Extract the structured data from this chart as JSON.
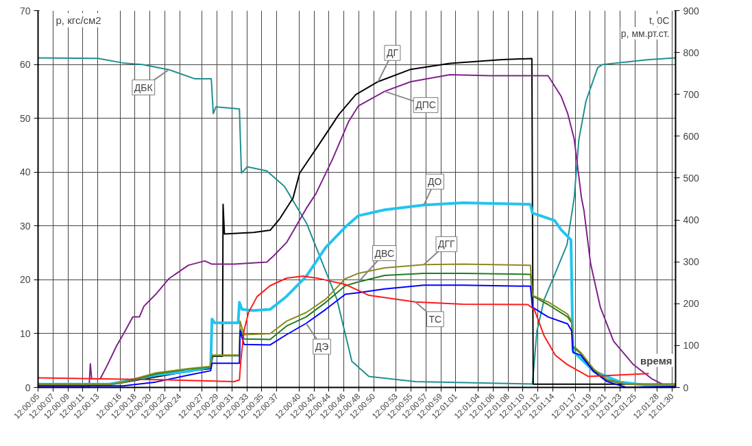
{
  "chart_data": {
    "type": "line",
    "ylabel": "p, кгс/см2",
    "y2label": "t, 0C\np, мм.рт.ст.",
    "xlabel": "время",
    "xlim": [
      12.001389,
      12.025125
    ],
    "xticks": [
      {
        "value": 12.001389,
        "label": "12:00:05"
      },
      {
        "value": 12.001944,
        "label": "12:00:07"
      },
      {
        "value": 12.0025,
        "label": "12:00:09"
      },
      {
        "value": 12.003056,
        "label": "12:00:11"
      },
      {
        "value": 12.003611,
        "label": "12:00:13"
      },
      {
        "value": 12.004444,
        "label": "12:00:16"
      },
      {
        "value": 12.005,
        "label": "12:00:18"
      },
      {
        "value": 12.005556,
        "label": "12:00:20"
      },
      {
        "value": 12.006111,
        "label": "12:00:22"
      },
      {
        "value": 12.006667,
        "label": "12:00:24"
      },
      {
        "value": 12.0075,
        "label": "12:00:27"
      },
      {
        "value": 12.008056,
        "label": "12:00:29"
      },
      {
        "value": 12.008611,
        "label": "12:00:31"
      },
      {
        "value": 12.009167,
        "label": "12:00:33"
      },
      {
        "value": 12.009722,
        "label": "12:00:35"
      },
      {
        "value": 12.010278,
        "label": "12:00:37"
      },
      {
        "value": 12.011111,
        "label": "12:00:40"
      },
      {
        "value": 12.011667,
        "label": "12:00:42"
      },
      {
        "value": 12.012222,
        "label": "12:00:44"
      },
      {
        "value": 12.012778,
        "label": "12:00:46"
      },
      {
        "value": 12.013333,
        "label": "12:00:48"
      },
      {
        "value": 12.013889,
        "label": "12:00:50"
      },
      {
        "value": 12.014722,
        "label": "12:00:53"
      },
      {
        "value": 12.015278,
        "label": "12:00:55"
      },
      {
        "value": 12.015833,
        "label": "12:00:57"
      },
      {
        "value": 12.016389,
        "label": "12:00:59"
      },
      {
        "value": 12.016944,
        "label": "12:01:01"
      },
      {
        "value": 12.017778,
        "label": "12:01:04"
      },
      {
        "value": 12.018333,
        "label": "12:01:06"
      },
      {
        "value": 12.018889,
        "label": "12:01:08"
      },
      {
        "value": 12.019444,
        "label": "12:01:10"
      },
      {
        "value": 12.02,
        "label": "12:01:12"
      },
      {
        "value": 12.020556,
        "label": "12:01:14"
      },
      {
        "value": 12.021389,
        "label": "12:01:17"
      },
      {
        "value": 12.021944,
        "label": "12:01:19"
      },
      {
        "value": 12.0225,
        "label": "12:01:21"
      },
      {
        "value": 12.023056,
        "label": "12:01:23"
      },
      {
        "value": 12.023611,
        "label": "12:01:25"
      },
      {
        "value": 12.024444,
        "label": "12:01:28"
      },
      {
        "value": 12.025,
        "label": "12:01:30"
      }
    ],
    "ylim": [
      0,
      70
    ],
    "yticks": [
      0,
      10,
      20,
      30,
      40,
      50,
      60,
      70
    ],
    "y2lim": [
      0,
      900
    ],
    "y2ticks": [
      0,
      100,
      200,
      300,
      400,
      500,
      600,
      700,
      800,
      900
    ],
    "grid": true,
    "series": [
      {
        "name": "ДБК",
        "color": "#1f8f8f",
        "axis": "y2",
        "x": [
          12.001389,
          12.003628,
          12.004553,
          12.005283,
          12.006258,
          12.007231,
          12.007839,
          12.007914,
          12.008011,
          12.008886,
          12.008961,
          12.009181,
          12.009908,
          12.010567,
          12.011394,
          12.012514,
          12.013075,
          12.013708,
          12.015436,
          12.019794,
          12.019964,
          12.020233,
          12.020647,
          12.021083,
          12.021353,
          12.021522,
          12.021789,
          12.022228,
          12.0224,
          12.024128,
          12.025125
        ],
        "values": [
          787,
          786,
          775,
          771,
          759,
          737,
          737,
          654,
          670,
          665,
          512,
          527,
          517,
          480,
          391,
          211,
          62,
          26,
          14,
          8,
          135,
          210,
          273,
          341,
          454,
          591,
          684,
          764,
          771,
          783,
          787
        ]
      },
      {
        "name": "ДГ",
        "color": "#000000",
        "x": [
          12.001389,
          12.004067,
          12.006989,
          12.007817,
          12.007889,
          12.008256,
          12.008278,
          12.008328,
          12.009422,
          12.010031,
          12.010397,
          12.010883,
          12.011128,
          12.011858,
          12.012589,
          12.013219,
          12.014047,
          12.015267,
          12.016725,
          12.018675,
          12.019775,
          12.019825,
          12.025125
        ],
        "values": [
          0.5,
          0.5,
          3.0,
          3.5,
          5.8,
          5.8,
          34.0,
          28.5,
          28.8,
          29.2,
          31.4,
          35.2,
          39.8,
          45.2,
          50.7,
          54.4,
          56.8,
          59.1,
          60.2,
          60.9,
          61.1,
          0.6,
          0.6
        ]
      },
      {
        "name": "ДПС",
        "color": "#80208c",
        "x": [
          12.001389,
          12.003289,
          12.003336,
          12.003386,
          12.003703,
          12.003944,
          12.004311,
          12.004553,
          12.004919,
          12.005161,
          12.005333,
          12.005772,
          12.006258,
          12.006989,
          12.007597,
          12.007864,
          12.008692,
          12.009908,
          12.010153,
          12.010639,
          12.011369,
          12.011736,
          12.012344,
          12.012953,
          12.013317,
          12.014292,
          12.015267,
          12.016725,
          12.018186,
          12.020378,
          12.020864,
          12.021108,
          12.021353,
          12.021619,
          12.021717,
          12.021961,
          12.022325,
          12.022814,
          12.023542,
          12.024272,
          12.024761,
          12.025125
        ],
        "values": [
          0,
          0,
          4.4,
          1.6,
          1.6,
          3.9,
          7.7,
          9.8,
          13.1,
          13.1,
          15.1,
          17.3,
          20.2,
          22.7,
          23.5,
          22.9,
          22.9,
          23.3,
          24.4,
          26.9,
          33.2,
          36,
          42.3,
          49.4,
          52.3,
          55,
          56.8,
          58.1,
          57.9,
          57.9,
          54.1,
          50.9,
          46.1,
          35.3,
          32.8,
          23,
          14.9,
          8.6,
          4.3,
          1.5,
          0.3,
          0
        ]
      },
      {
        "name": "ДО",
        "color": "#22c4ee",
        "x": [
          12.001389,
          12.004067,
          12.005772,
          12.006989,
          12.007817,
          12.007864,
          12.007961,
          12.008839,
          12.008886,
          12.008983,
          12.009422,
          12.010031,
          12.010639,
          12.011369,
          12.0121,
          12.012831,
          12.013317,
          12.014292,
          12.015753,
          12.017214,
          12.019722,
          12.019794,
          12.020622,
          12.020864,
          12.021231,
          12.021303,
          12.021353,
          12.022083,
          12.023056,
          12.024031,
          12.025125
        ],
        "values": [
          0.6,
          0.6,
          2.3,
          3.0,
          3.8,
          12.7,
          12.0,
          12.0,
          15.8,
          14.5,
          14.3,
          14.5,
          16.9,
          20.6,
          26.0,
          29.8,
          31.9,
          33.0,
          33.9,
          34.3,
          34.0,
          32.4,
          31.0,
          29.3,
          27.4,
          7.0,
          6.5,
          3.0,
          1.0,
          0.4,
          0.4
        ]
      },
      {
        "name": "ДВС",
        "color": "#1e7d1e",
        "x": [
          12.001389,
          12.004067,
          12.004553,
          12.005772,
          12.006989,
          12.007817,
          12.007864,
          12.008886,
          12.008911,
          12.009058,
          12.010031,
          12.010639,
          12.011369,
          12.0121,
          12.012831,
          12.013317,
          12.014292,
          12.015753,
          12.017214,
          12.019722,
          12.019794,
          12.020378,
          12.021108,
          12.021256,
          12.021303,
          12.021594,
          12.022083,
          12.022569,
          12.0233,
          12.025125
        ],
        "values": [
          0.6,
          0.6,
          0.9,
          2.5,
          3.4,
          3.8,
          5.9,
          5.9,
          11.0,
          9.0,
          8.9,
          11.4,
          13.1,
          15.8,
          18.9,
          19.6,
          20.8,
          21.2,
          21.2,
          21.0,
          17.0,
          15.4,
          13.1,
          12.0,
          7.5,
          6.3,
          3.2,
          1.3,
          0.6,
          0.6
        ]
      },
      {
        "name": "ДГГ",
        "color": "#8a8a1e",
        "x": [
          12.001389,
          12.004067,
          12.004553,
          12.005772,
          12.006989,
          12.007817,
          12.007864,
          12.008886,
          12.008911,
          12.009058,
          12.010031,
          12.010639,
          12.011369,
          12.0121,
          12.012831,
          12.013317,
          12.014292,
          12.015753,
          12.017214,
          12.019722,
          12.019794,
          12.020378,
          12.021108,
          12.021256,
          12.021303,
          12.021594,
          12.022083,
          12.022569,
          12.0233,
          12.025125
        ],
        "values": [
          0.6,
          0.6,
          1.0,
          2.7,
          3.5,
          3.9,
          6.0,
          6.0,
          12.3,
          9.8,
          10.0,
          12.3,
          13.9,
          16.4,
          20.2,
          21.2,
          22.2,
          22.8,
          22.9,
          22.7,
          17.1,
          15.9,
          13.6,
          12.3,
          7.8,
          6.5,
          3.4,
          1.5,
          0.6,
          0.6
        ]
      },
      {
        "name": "ДЭ",
        "color": "#0000ff",
        "x": [
          12.001389,
          12.004067,
          12.004553,
          12.005772,
          12.006989,
          12.007817,
          12.007864,
          12.008886,
          12.008911,
          12.009058,
          12.010031,
          12.010639,
          12.011369,
          12.0121,
          12.012831,
          12.013317,
          12.014292,
          12.015753,
          12.017214,
          12.019722,
          12.019794,
          12.020378,
          12.021108,
          12.021256,
          12.021303,
          12.021594,
          12.022083,
          12.022569,
          12.0233,
          12.025125
        ],
        "values": [
          0.3,
          0.3,
          0.3,
          1.0,
          2.3,
          3.1,
          4.5,
          4.5,
          10.5,
          8.0,
          7.9,
          9.8,
          11.9,
          14.5,
          17.3,
          17.6,
          18.3,
          19.0,
          19.0,
          18.8,
          14.9,
          13.1,
          11.8,
          10.5,
          6.5,
          6.0,
          2.9,
          1.1,
          0.0,
          0.2
        ]
      },
      {
        "name": "ТС",
        "color": "#ff1a1a",
        "axis": "y2",
        "x": [
          12.001389,
          12.006258,
          12.008692,
          12.008886,
          12.008936,
          12.009058,
          12.009228,
          12.009544,
          12.010031,
          12.010639,
          12.01125,
          12.011858,
          12.012831,
          12.013708,
          12.015436,
          12.017189,
          12.019622,
          12.019867,
          12.020233,
          12.020647,
          12.021083,
          12.021886,
          12.024128
        ],
        "values": [
          23,
          18,
          14,
          18,
          62,
          136,
          179,
          217,
          243,
          261,
          266,
          260,
          246,
          220,
          204,
          199,
          198,
          186,
          123,
          77,
          55,
          26,
          33
        ]
      }
    ]
  }
}
